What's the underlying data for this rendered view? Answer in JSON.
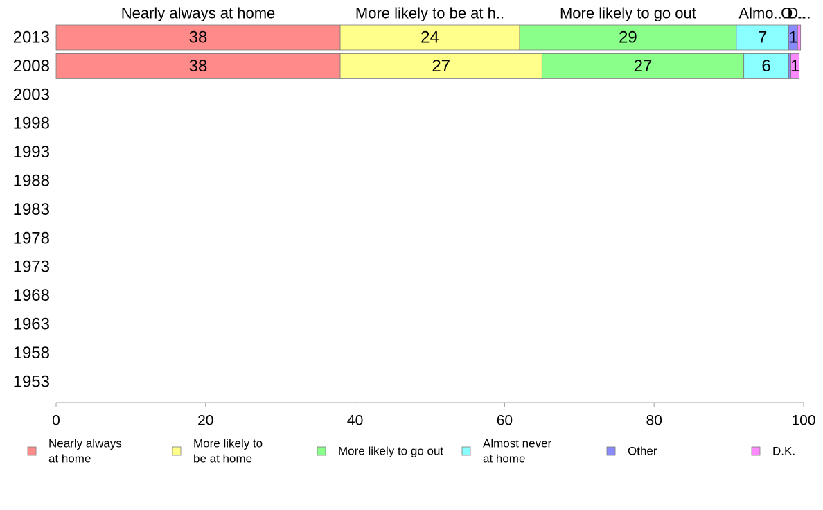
{
  "chart_data": {
    "type": "bar",
    "orientation": "horizontal",
    "stacked": true,
    "categories": [
      "2013",
      "2008",
      "2003",
      "1998",
      "1993",
      "1988",
      "1983",
      "1978",
      "1973",
      "1968",
      "1963",
      "1958",
      "1953"
    ],
    "series": [
      {
        "name": "Nearly always at home",
        "legend_label": [
          "Nearly always",
          "at home"
        ],
        "header_label": "Nearly always at home",
        "color": "#ff8a8a",
        "values": [
          38,
          38,
          null,
          null,
          null,
          null,
          null,
          null,
          null,
          null,
          null,
          null,
          null
        ],
        "data_labels": [
          "38",
          "38"
        ]
      },
      {
        "name": "More likely to be at home",
        "legend_label": [
          "More likely to",
          "be at home"
        ],
        "header_label": "More likely to be at h..",
        "color": "#ffff8a",
        "values": [
          24,
          27,
          null,
          null,
          null,
          null,
          null,
          null,
          null,
          null,
          null,
          null,
          null
        ],
        "data_labels": [
          "24",
          "27"
        ]
      },
      {
        "name": "More likely to go out",
        "legend_label": [
          "More likely to go out"
        ],
        "header_label": "More likely to go out",
        "color": "#8aff8a",
        "values": [
          29,
          27,
          null,
          null,
          null,
          null,
          null,
          null,
          null,
          null,
          null,
          null,
          null
        ],
        "data_labels": [
          "29",
          "27"
        ]
      },
      {
        "name": "Almost never at home",
        "legend_label": [
          "Almost never",
          "at home"
        ],
        "header_label": "Almo...",
        "color": "#8affff",
        "values": [
          7,
          6,
          null,
          null,
          null,
          null,
          null,
          null,
          null,
          null,
          null,
          null,
          null
        ],
        "data_labels": [
          "7",
          "6"
        ]
      },
      {
        "name": "Other",
        "legend_label": [
          "Other"
        ],
        "header_label": "O...",
        "color": "#8a8aff",
        "values": [
          1.2,
          0.3,
          null,
          null,
          null,
          null,
          null,
          null,
          null,
          null,
          null,
          null,
          null
        ],
        "data_labels": [
          "1",
          ""
        ]
      },
      {
        "name": "D.K.",
        "legend_label": [
          "D.K."
        ],
        "header_label": "D...",
        "color": "#ff8aff",
        "values": [
          0.4,
          1.1,
          null,
          null,
          null,
          null,
          null,
          null,
          null,
          null,
          null,
          null,
          null
        ],
        "data_labels": [
          "",
          "1"
        ]
      }
    ],
    "xlim": [
      0,
      100
    ],
    "xticks": [
      "0",
      "20",
      "40",
      "60",
      "80",
      "100"
    ],
    "grid": false,
    "legend_position": "bottom"
  }
}
